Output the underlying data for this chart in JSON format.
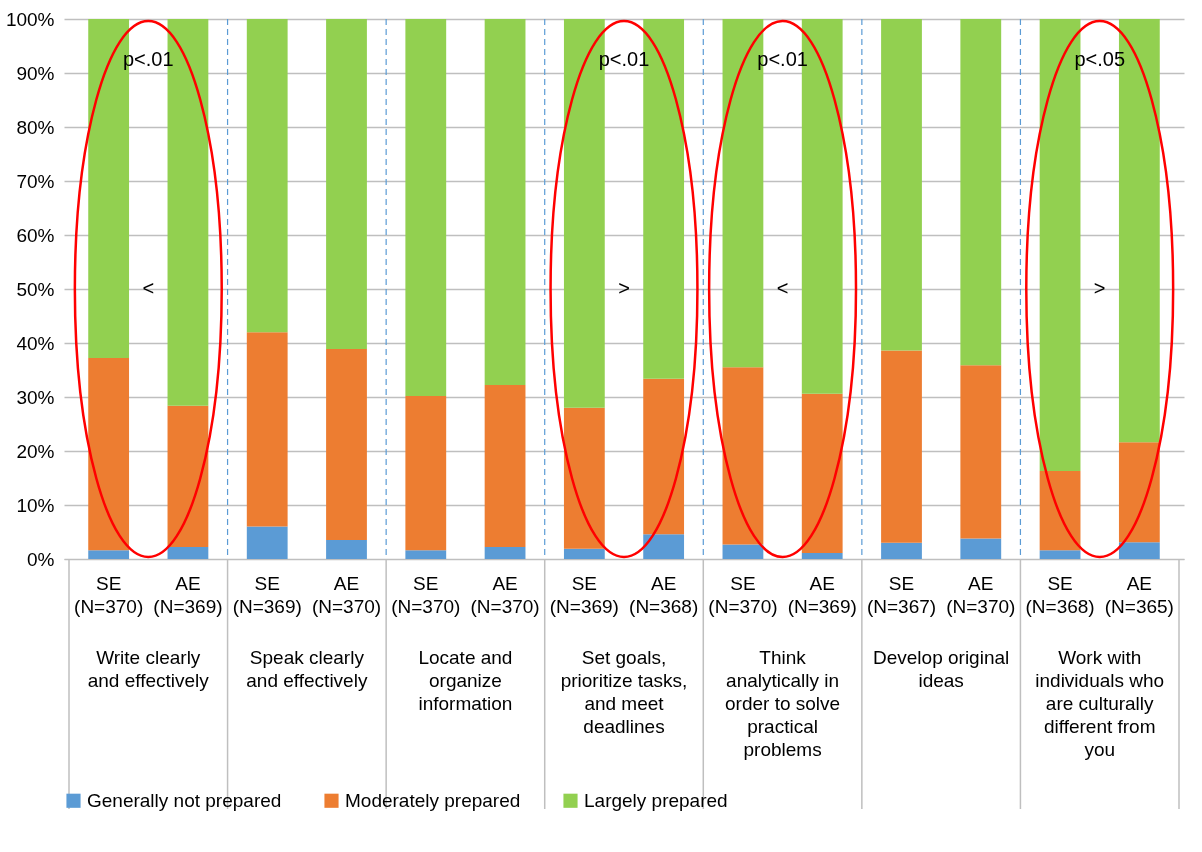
{
  "chart_data": {
    "type": "bar",
    "stacked": true,
    "categories": [
      "SE (N=370)",
      "AE (N=369)",
      "SE (N=369)",
      "AE (N=370)",
      "SE (N=370)",
      "AE (N=370)",
      "SE (N=369)",
      "AE (N=368)",
      "SE (N=370)",
      "AE (N=369)",
      "SE (N=367)",
      "AE (N=370)",
      "SE (N=368)",
      "AE (N=365)"
    ],
    "series": [
      {
        "name": "Generally not prepared",
        "color": "#5b9bd5",
        "values": [
          1.6,
          2.2,
          6.0,
          3.5,
          1.6,
          2.2,
          1.9,
          4.6,
          2.7,
          1.1,
          3.0,
          3.8,
          1.6,
          3.1
        ]
      },
      {
        "name": "Moderately prepared",
        "color": "#ed7d31",
        "values": [
          35.6,
          26.2,
          36.0,
          35.4,
          28.6,
          30.0,
          26.1,
          28.8,
          32.8,
          29.5,
          35.6,
          32.1,
          14.7,
          18.5
        ]
      },
      {
        "name": "Largely prepared",
        "color": "#92d050",
        "values": [
          62.8,
          71.6,
          58.0,
          61.1,
          69.8,
          67.8,
          72.0,
          66.6,
          64.5,
          69.4,
          61.4,
          64.1,
          83.7,
          78.4
        ]
      }
    ],
    "ylim": [
      0,
      100
    ],
    "yticks": [
      {
        "value": 0,
        "label": "0%"
      },
      {
        "value": 10,
        "label": "10%"
      },
      {
        "value": 20,
        "label": "20%"
      },
      {
        "value": 30,
        "label": "30%"
      },
      {
        "value": 40,
        "label": "40%"
      },
      {
        "value": 50,
        "label": "50%"
      },
      {
        "value": 60,
        "label": "60%"
      },
      {
        "value": 70,
        "label": "70%"
      },
      {
        "value": 80,
        "label": "80%"
      },
      {
        "value": 90,
        "label": "90%"
      },
      {
        "value": 100,
        "label": "100%"
      }
    ],
    "grid": "y",
    "legend": "bottom",
    "annotations": [
      "Write clearly and effectively",
      "p<.01",
      "<",
      "Speak clearly and effectively",
      "Locate and organize information",
      "Set goals, prioritize tasks, and meet deadlines",
      "p<.01",
      ">",
      "Think analytically in order to solve practical problems",
      "p<.01",
      "<",
      "Develop original ideas",
      "Work with individuals who are culturally different from you",
      "p<.05",
      ">"
    ]
  }
}
